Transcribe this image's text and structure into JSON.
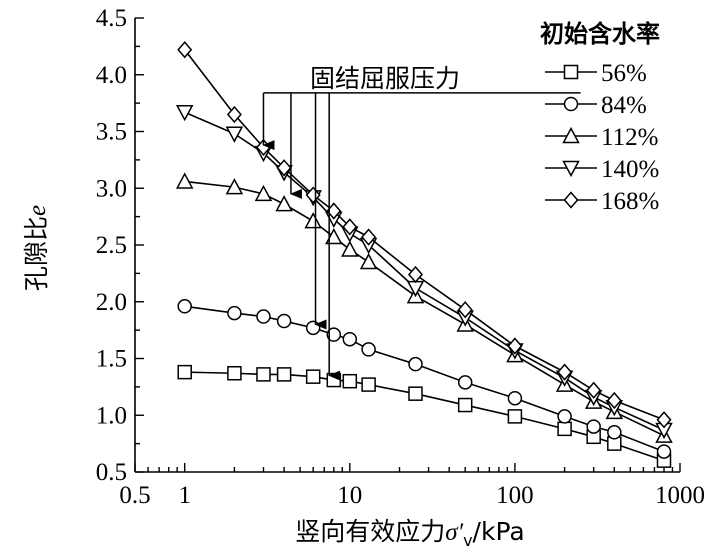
{
  "chart_data": {
    "type": "line",
    "xscale": "log",
    "xlim": [
      0.5,
      1000
    ],
    "ylim": [
      0.5,
      4.5
    ],
    "x_ticks": [
      "0.5",
      "1",
      "10",
      "100",
      "1000"
    ],
    "y_ticks": [
      "0.5",
      "1.0",
      "1.5",
      "2.0",
      "2.5",
      "3.0",
      "3.5",
      "4.0",
      "4.5"
    ],
    "xlabel_main": "竖向有效应力",
    "xlabel_sigma": "σ′",
    "xlabel_sub": "v",
    "xlabel_unit": "/kPa",
    "ylabel_main": "孔隙比",
    "ylabel_var": "e",
    "legend_title": "初始含水率",
    "legend_position": "top-right",
    "annotation": "固结屈服压力",
    "grid": false,
    "series": [
      {
        "name": "56%",
        "marker": "square",
        "x": [
          1,
          2,
          3,
          4,
          6,
          8,
          10,
          13,
          25,
          50,
          100,
          200,
          300,
          400,
          800
        ],
        "y": [
          1.38,
          1.37,
          1.36,
          1.36,
          1.34,
          1.31,
          1.3,
          1.27,
          1.19,
          1.09,
          0.99,
          0.88,
          0.81,
          0.75,
          0.6
        ]
      },
      {
        "name": "84%",
        "marker": "circle",
        "x": [
          1,
          2,
          3,
          4,
          6,
          8,
          10,
          13,
          25,
          50,
          100,
          200,
          300,
          400,
          800
        ],
        "y": [
          1.96,
          1.9,
          1.87,
          1.83,
          1.77,
          1.71,
          1.67,
          1.58,
          1.45,
          1.29,
          1.15,
          0.99,
          0.9,
          0.85,
          0.68
        ]
      },
      {
        "name": "112%",
        "marker": "triangle-up",
        "x": [
          1,
          2,
          3,
          4,
          6,
          8,
          10,
          13,
          25,
          50,
          100,
          200,
          300,
          400,
          800
        ],
        "y": [
          3.06,
          3.01,
          2.95,
          2.86,
          2.71,
          2.57,
          2.46,
          2.35,
          2.05,
          1.8,
          1.53,
          1.27,
          1.12,
          1.03,
          0.82
        ]
      },
      {
        "name": "140%",
        "marker": "triangle-down",
        "x": [
          1,
          2,
          3,
          4,
          6,
          8,
          10,
          13,
          25,
          50,
          100,
          200,
          300,
          400,
          800
        ],
        "y": [
          3.67,
          3.48,
          3.31,
          3.14,
          2.92,
          2.73,
          2.6,
          2.5,
          2.12,
          1.86,
          1.57,
          1.33,
          1.16,
          1.07,
          0.87
        ]
      },
      {
        "name": "168%",
        "marker": "diamond",
        "x": [
          1,
          2,
          3,
          4,
          6,
          8,
          10,
          13,
          25,
          50,
          100,
          200,
          300,
          400,
          800
        ],
        "y": [
          4.22,
          3.65,
          3.36,
          3.18,
          2.94,
          2.8,
          2.66,
          2.57,
          2.24,
          1.93,
          1.61,
          1.38,
          1.22,
          1.13,
          0.96
        ]
      }
    ],
    "yield_arrows": [
      {
        "x": 3,
        "y_end": 3.38
      },
      {
        "x": 4.4,
        "y_end": 2.95
      },
      {
        "x": 6.2,
        "y_end": 1.8
      },
      {
        "x": 7.5,
        "y_end": 1.35
      }
    ],
    "annotation_line": {
      "x_start": 3,
      "x_end": 250,
      "y": 3.84
    }
  }
}
